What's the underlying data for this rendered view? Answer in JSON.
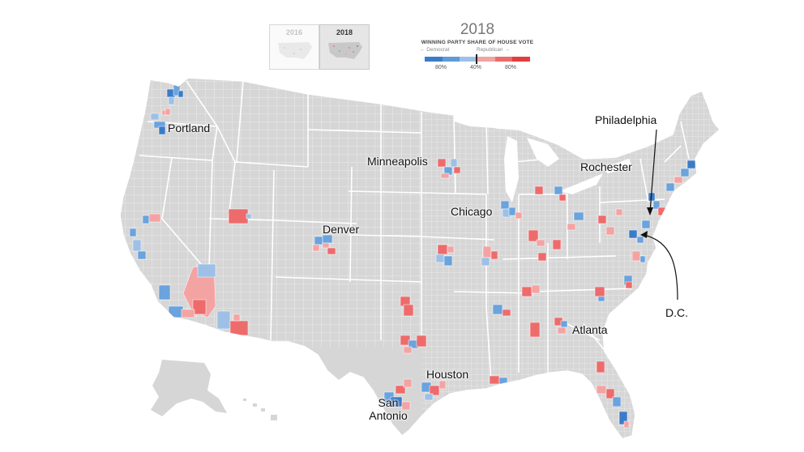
{
  "toggles": [
    {
      "year": "2016",
      "active": false
    },
    {
      "year": "2018",
      "active": true
    }
  ],
  "legend": {
    "year": "2018",
    "title": "WINNING PARTY SHARE OF HOUSE VOTE",
    "democrat_label": "← Democrat",
    "republican_label": "Republican →",
    "ticks": [
      "80%",
      "40%",
      "80%"
    ],
    "colors": [
      "#3b7cc9",
      "#5f9bd8",
      "#9ec0e6",
      "#f4a3a3",
      "#ee6b6b",
      "#e53c3c"
    ]
  },
  "map_colors": {
    "land": "#d6d6d6",
    "border": "#ffffff",
    "dem_strong": "#3b7cc9",
    "dem_mid": "#6aa3dd",
    "dem_light": "#9ec0e6",
    "rep_light": "#f4a3a3",
    "rep_mid": "#ee6b6b",
    "rep_strong": "#e53c3c"
  },
  "cities": [
    {
      "name": "Portland"
    },
    {
      "name": "Minneapolis"
    },
    {
      "name": "Philadelphia"
    },
    {
      "name": "Rochester"
    },
    {
      "name": "Chicago"
    },
    {
      "name": "Denver"
    },
    {
      "name": "Atlanta"
    },
    {
      "name": "D.C."
    },
    {
      "name": "Houston"
    },
    {
      "name": "San Antonio"
    }
  ]
}
